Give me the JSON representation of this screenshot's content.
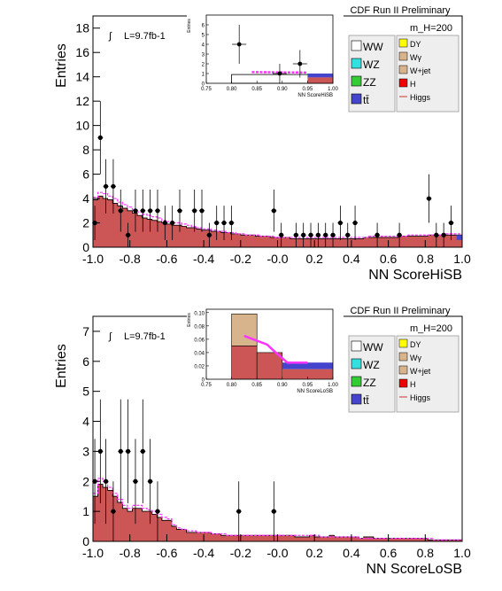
{
  "chart_data": [
    {
      "type": "bar",
      "title": "CDF Run II Preliminary",
      "mass_label": "m_H=200",
      "lumi_label": "L=9.7fb-1",
      "xlabel": "NN ScoreHiSB",
      "ylabel": "Entries",
      "xlim": [
        -1.0,
        1.0
      ],
      "ylim": [
        0,
        19
      ],
      "x_ticks": [
        "-1.0",
        "-0.8",
        "-0.6",
        "-0.4",
        "-0.2",
        "-0.0",
        "0.2",
        "0.4",
        "0.6",
        "0.8",
        "1.0"
      ],
      "y_ticks": [
        "0",
        "2",
        "4",
        "6",
        "8",
        "10",
        "12",
        "14",
        "16",
        "18"
      ],
      "legend_left": [
        "WW",
        "WZ",
        "ZZ",
        "tt̄"
      ],
      "legend_right": [
        "DY",
        "Wγ",
        "W+jet",
        "H",
        "Higgs"
      ],
      "background": [
        3.9,
        4.2,
        4.0,
        3.9,
        3.6,
        3.4,
        3.2,
        3.0,
        2.8,
        2.6,
        2.4,
        2.3,
        2.2,
        2.1,
        2.0,
        1.9,
        1.8,
        1.8,
        1.7,
        1.6,
        1.6,
        1.5,
        1.4,
        1.4,
        1.3,
        1.3,
        1.2,
        1.2,
        1.1,
        1.1,
        1.0,
        1.0,
        1.0,
        0.9,
        0.9,
        0.9,
        0.8,
        0.8,
        0.8,
        0.8,
        0.7,
        0.7,
        0.7,
        0.7,
        0.7,
        0.7,
        0.7,
        0.7,
        0.7,
        0.7,
        0.7,
        0.7,
        0.7,
        0.7,
        0.7,
        0.8,
        0.8,
        0.8,
        0.8,
        0.8,
        0.8,
        0.8,
        0.9,
        0.9,
        0.9,
        0.9,
        0.9,
        0.9,
        1.0,
        1.0,
        1.0,
        1.0,
        1.0,
        1.0,
        1.0
      ],
      "signal": [
        4.1,
        4.5,
        4.4,
        4.2,
        4.0,
        3.7,
        3.5,
        3.3,
        3.1,
        2.9,
        2.7,
        2.6,
        2.5,
        2.4,
        2.2,
        2.1,
        2.0,
        2.0,
        1.9,
        1.8,
        1.7,
        1.6,
        1.5,
        1.5,
        1.4,
        1.3,
        1.3,
        1.2,
        1.2,
        1.1,
        1.1,
        1.0,
        1.0,
        1.0,
        0.9,
        0.9,
        0.9,
        0.8,
        0.8,
        0.8,
        0.8,
        0.8,
        0.8,
        0.8,
        0.8,
        0.8,
        0.8,
        0.8,
        0.8,
        0.8,
        0.8,
        0.8,
        0.8,
        0.8,
        0.8,
        0.8,
        0.9,
        0.9,
        0.9,
        0.9,
        0.9,
        0.9,
        0.9,
        0.9,
        1.0,
        1.0,
        1.0,
        1.0,
        1.0,
        1.0,
        1.0,
        1.1,
        1.1,
        1.1,
        1.1
      ],
      "data_points": [
        {
          "x": -0.99,
          "y": 2
        },
        {
          "x": -0.96,
          "y": 9
        },
        {
          "x": -0.93,
          "y": 5
        },
        {
          "x": -0.89,
          "y": 5
        },
        {
          "x": -0.85,
          "y": 3
        },
        {
          "x": -0.81,
          "y": 1
        },
        {
          "x": -0.77,
          "y": 3
        },
        {
          "x": -0.73,
          "y": 3
        },
        {
          "x": -0.69,
          "y": 3
        },
        {
          "x": -0.65,
          "y": 3
        },
        {
          "x": -0.61,
          "y": 2
        },
        {
          "x": -0.57,
          "y": 2
        },
        {
          "x": -0.53,
          "y": 3
        },
        {
          "x": -0.45,
          "y": 3
        },
        {
          "x": -0.41,
          "y": 3
        },
        {
          "x": -0.37,
          "y": 1
        },
        {
          "x": -0.33,
          "y": 2
        },
        {
          "x": -0.29,
          "y": 2
        },
        {
          "x": -0.25,
          "y": 2
        },
        {
          "x": -0.02,
          "y": 3
        },
        {
          "x": 0.02,
          "y": 1
        },
        {
          "x": 0.1,
          "y": 1
        },
        {
          "x": 0.14,
          "y": 1
        },
        {
          "x": 0.18,
          "y": 1
        },
        {
          "x": 0.22,
          "y": 1
        },
        {
          "x": 0.26,
          "y": 1
        },
        {
          "x": 0.3,
          "y": 1
        },
        {
          "x": 0.34,
          "y": 2
        },
        {
          "x": 0.38,
          "y": 1
        },
        {
          "x": 0.42,
          "y": 2
        },
        {
          "x": 0.54,
          "y": 1
        },
        {
          "x": 0.66,
          "y": 1
        },
        {
          "x": 0.82,
          "y": 4
        },
        {
          "x": 0.86,
          "y": 1
        },
        {
          "x": 0.9,
          "y": 1
        },
        {
          "x": 0.94,
          "y": 2
        }
      ],
      "inset": {
        "xlabel": "NN ScoreHiSB",
        "ylabel": "Entries",
        "xlim": [
          0.75,
          1.0
        ],
        "ylim": [
          0,
          7
        ],
        "x_ticks": [
          "0.75",
          "0.80",
          "0.85",
          "0.90",
          "0.95",
          "1.00"
        ],
        "y_ticks": [
          "0",
          "1",
          "2",
          "3",
          "4",
          "5",
          "6"
        ],
        "bins": [
          0.8,
          0.85,
          0.9,
          0.95,
          1.0
        ],
        "background": [
          0.9,
          1.0,
          1.0,
          1.0
        ],
        "signal": [
          1.1,
          1.1,
          1.1,
          1.1
        ],
        "data_points": [
          {
            "x": 0.815,
            "y": 4
          },
          {
            "x": 0.895,
            "y": 1
          },
          {
            "x": 0.935,
            "y": 2
          }
        ]
      }
    },
    {
      "type": "bar",
      "title": "CDF Run II Preliminary",
      "mass_label": "m_H=200",
      "lumi_label": "L=9.7fb-1",
      "xlabel": "NN ScoreLoSB",
      "ylabel": "Entries",
      "xlim": [
        -1.0,
        1.0
      ],
      "ylim": [
        0,
        7.5
      ],
      "x_ticks": [
        "-1.0",
        "-0.8",
        "-0.6",
        "-0.4",
        "-0.2",
        "-0.0",
        "0.2",
        "0.4",
        "0.6",
        "0.8",
        "1.0"
      ],
      "y_ticks": [
        "0",
        "1",
        "2",
        "3",
        "4",
        "5",
        "6",
        "7"
      ],
      "legend_left": [
        "WW",
        "WZ",
        "ZZ",
        "tt̄"
      ],
      "legend_right": [
        "DY",
        "Wγ",
        "W+jet",
        "H",
        "Higgs"
      ],
      "background": [
        1.5,
        1.9,
        1.8,
        1.7,
        1.5,
        1.3,
        1.1,
        1.0,
        1.1,
        1.1,
        1.0,
        1.0,
        0.9,
        0.8,
        0.7,
        0.7,
        0.5,
        0.4,
        0.4,
        0.3,
        0.3,
        0.3,
        0.3,
        0.3,
        0.25,
        0.25,
        0.2,
        0.2,
        0.2,
        0.2,
        0.2,
        0.2,
        0.2,
        0.2,
        0.2,
        0.2,
        0.2,
        0.2,
        0.2,
        0.2,
        0.2,
        0.15,
        0.15,
        0.15,
        0.2,
        0.15,
        0.15,
        0.15,
        0.2,
        0.15,
        0.15,
        0.15,
        0.15,
        0.15,
        0.1,
        0.15,
        0.15,
        0.1,
        0.1,
        0.1,
        0.1,
        0.1,
        0.1,
        0.1,
        0.1,
        0.1,
        0.1,
        0.1,
        0.05,
        0.05,
        0.05,
        0.05,
        0.05,
        0.05,
        0.05
      ],
      "signal": [
        1.6,
        2.1,
        2.0,
        1.8,
        1.6,
        1.4,
        1.2,
        1.1,
        1.2,
        1.2,
        1.1,
        1.05,
        1.0,
        0.9,
        0.8,
        0.75,
        0.55,
        0.45,
        0.4,
        0.35,
        0.35,
        0.3,
        0.3,
        0.3,
        0.25,
        0.25,
        0.25,
        0.2,
        0.2,
        0.2,
        0.2,
        0.2,
        0.2,
        0.2,
        0.2,
        0.2,
        0.2,
        0.2,
        0.2,
        0.2,
        0.2,
        0.2,
        0.2,
        0.2,
        0.2,
        0.2,
        0.15,
        0.15,
        0.15,
        0.15,
        0.15,
        0.15,
        0.15,
        0.15,
        0.1,
        0.1,
        0.1,
        0.1,
        0.1,
        0.1,
        0.1,
        0.1,
        0.1,
        0.1,
        0.1,
        0.1,
        0.1,
        0.1,
        0.1,
        0.05,
        0.05,
        0.05,
        0.05,
        0.05,
        0.05
      ],
      "data_points": [
        {
          "x": -0.99,
          "y": 2
        },
        {
          "x": -0.96,
          "y": 3
        },
        {
          "x": -0.93,
          "y": 2
        },
        {
          "x": -0.89,
          "y": 1
        },
        {
          "x": -0.85,
          "y": 3
        },
        {
          "x": -0.81,
          "y": 3
        },
        {
          "x": -0.77,
          "y": 2
        },
        {
          "x": -0.73,
          "y": 3
        },
        {
          "x": -0.69,
          "y": 2
        },
        {
          "x": -0.65,
          "y": 1
        },
        {
          "x": -0.21,
          "y": 1
        },
        {
          "x": -0.02,
          "y": 1
        }
      ],
      "inset": {
        "xlabel": "NN ScoreLoSB",
        "ylabel": "Entries",
        "xlim": [
          0.75,
          1.0
        ],
        "ylim": [
          0,
          0.105
        ],
        "x_ticks": [
          "0.75",
          "0.80",
          "0.85",
          "0.90",
          "0.95",
          "1.00"
        ],
        "y_ticks": [
          "0",
          "0.02",
          "0.04",
          "0.06",
          "0.08",
          "0.10"
        ],
        "bins": [
          0.8,
          0.85,
          0.9,
          0.95,
          1.0
        ],
        "background": [
          0.098,
          0.04,
          0.025,
          0.022
        ],
        "signal": [
          0.065,
          0.055,
          0.025,
          0.025
        ],
        "data_points": []
      }
    }
  ],
  "colors": {
    "main_fill": "#cc5555",
    "dark_line": "#7a2a2a",
    "signal": "#ff33ff",
    "tt": "#4444cc",
    "wjet": "#d8b48c",
    "ww": "#ffffff",
    "wz": "#33e0e0",
    "zz": "#33cc33",
    "dy": "#ffff00",
    "wg": "#d8b48c",
    "h": "#ee0000",
    "higgs": "#cc3333"
  }
}
